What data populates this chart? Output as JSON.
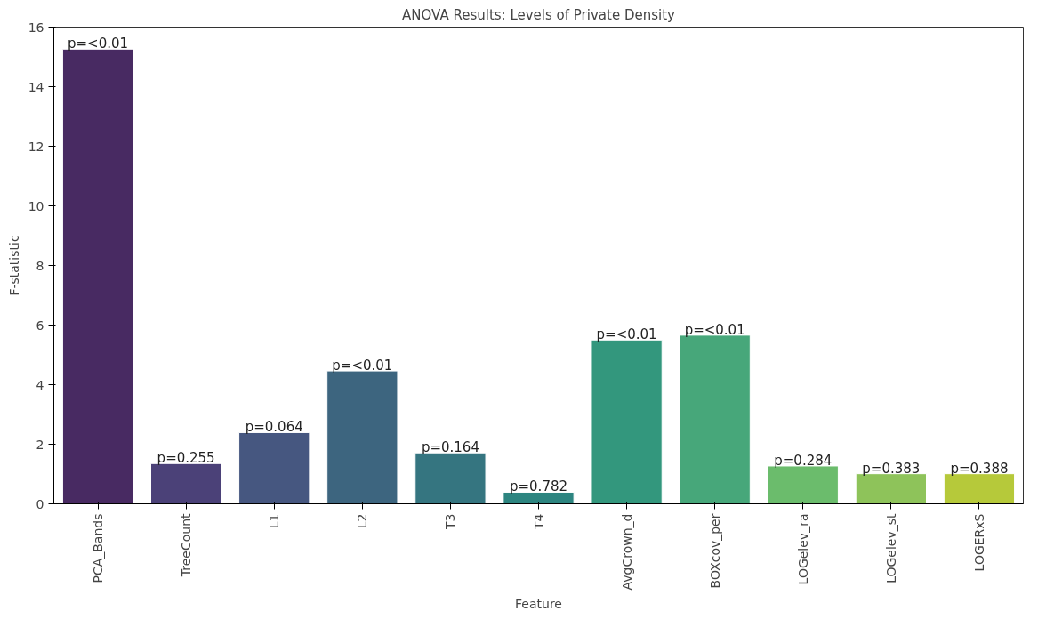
{
  "chart_data": {
    "type": "bar",
    "title": "ANOVA Results: Levels of Private Density",
    "xlabel": "Feature",
    "ylabel": "F-statistic",
    "categories": [
      "PCA_Bands",
      "TreeCount",
      "L1",
      "L2",
      "T3",
      "T4",
      "AvgCrown_d",
      "BOXcov_per",
      "LOGelev_ra",
      "LOGelev_st",
      "LOGERxS"
    ],
    "values": [
      15.26,
      1.35,
      2.39,
      4.46,
      1.71,
      0.39,
      5.5,
      5.66,
      1.27,
      1.01,
      1.01
    ],
    "colors": [
      "#482a62",
      "#4b4178",
      "#465780",
      "#3d657f",
      "#357580",
      "#2d8580",
      "#33977d",
      "#47a77a",
      "#6bbc6c",
      "#8ec35a",
      "#b6c93a"
    ],
    "annotations": [
      {
        "text": "p=<0.01",
        "x": "PCA_Bands",
        "y": 15.26
      },
      {
        "text": "p=0.255",
        "x": "TreeCount",
        "y": 1.35
      },
      {
        "text": "p=0.064",
        "x": "L1",
        "y": 2.39
      },
      {
        "text": "p=<0.01",
        "x": "L2",
        "y": 4.46
      },
      {
        "text": "p=0.164",
        "x": "T3",
        "y": 1.71
      },
      {
        "text": "p=0.782",
        "x": "T4",
        "y": 0.39
      },
      {
        "text": "p=<0.01",
        "x": "AvgCrown_d",
        "y": 5.5
      },
      {
        "text": "p=<0.01",
        "x": "BOXcov_per",
        "y": 5.66
      },
      {
        "text": "p=0.284",
        "x": "LOGelev_ra",
        "y": 1.27
      },
      {
        "text": "p=0.383",
        "x": "LOGelev_st",
        "y": 1.01
      },
      {
        "text": "p=0.388",
        "x": "LOGERxS",
        "y": 1.01
      }
    ],
    "ylim": [
      0,
      16
    ],
    "yticks": [
      0,
      2,
      4,
      6,
      8,
      10,
      12,
      14,
      16
    ],
    "grid": false
  }
}
